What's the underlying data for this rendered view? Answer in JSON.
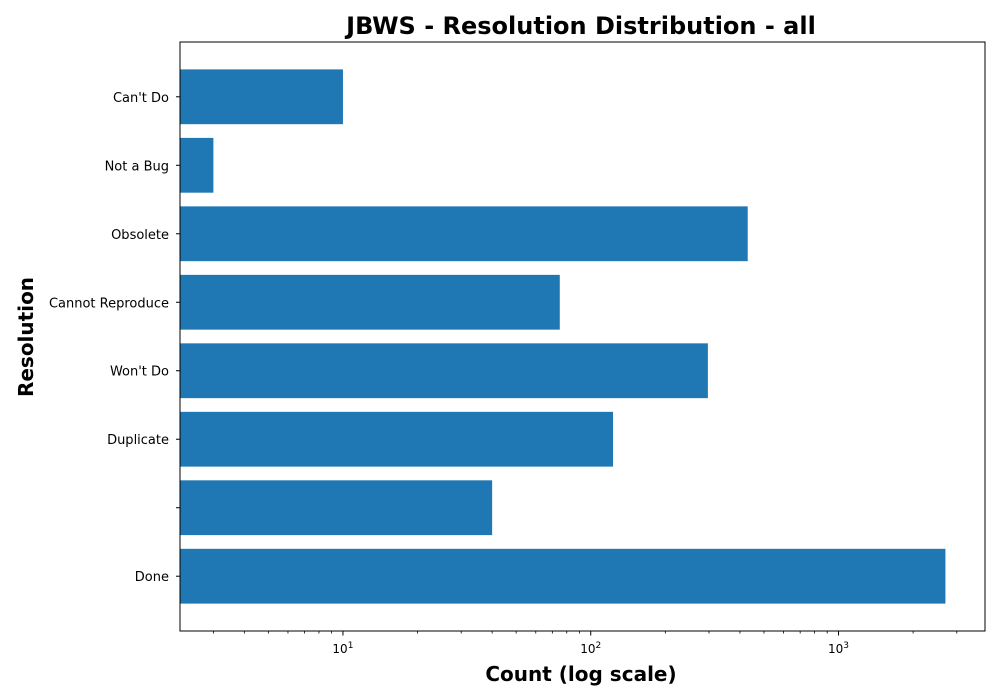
{
  "chart_data": {
    "type": "bar",
    "orientation": "horizontal",
    "title": "JBWS - Resolution Distribution - all",
    "xlabel": "Count (log scale)",
    "ylabel": "Resolution",
    "x_scale": "log",
    "xlim": [
      2.2,
      3900
    ],
    "x_ticks": [
      10,
      100,
      1000
    ],
    "x_tick_labels": [
      {
        "base": "10",
        "exp": "1"
      },
      {
        "base": "10",
        "exp": "2"
      },
      {
        "base": "10",
        "exp": "3"
      }
    ],
    "grid": false,
    "color": "#1f77b4",
    "categories": [
      "Done",
      "",
      "Duplicate",
      "Won't Do",
      "Cannot Reproduce",
      "Obsolete",
      "Not a Bug",
      "Can't Do"
    ],
    "values": [
      2700,
      40,
      123,
      297,
      75,
      430,
      3,
      10
    ]
  }
}
